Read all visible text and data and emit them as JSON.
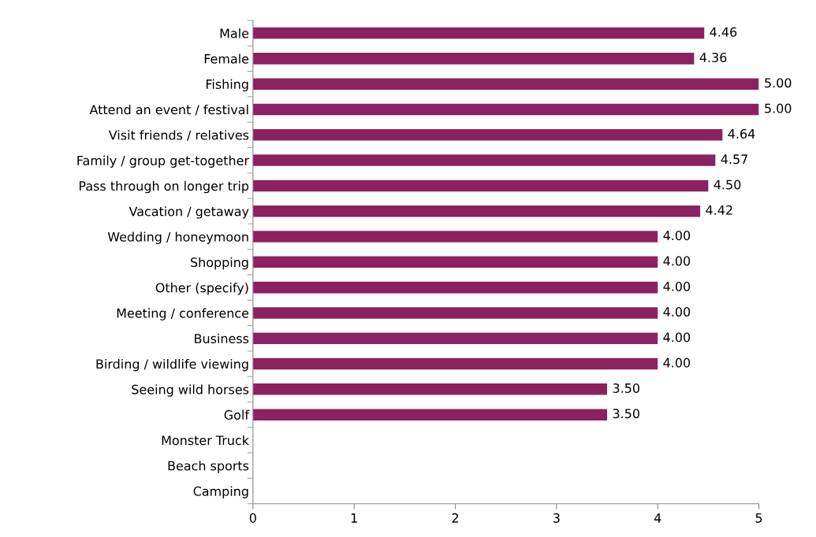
{
  "chart_data": {
    "type": "bar",
    "orientation": "horizontal",
    "categories": [
      "Male",
      "Female",
      "Fishing",
      "Attend an event / festival",
      "Visit friends / relatives",
      "Family / group get-together",
      "Pass through on longer trip",
      "Vacation / getaway",
      "Wedding / honeymoon",
      "Shopping",
      "Other (specify)",
      "Meeting / conference",
      "Business",
      "Birding / wildlife viewing",
      "Seeing wild horses",
      "Golf",
      "Monster Truck",
      "Beach sports",
      "Camping"
    ],
    "values": [
      4.46,
      4.36,
      5.0,
      5.0,
      4.64,
      4.57,
      4.5,
      4.42,
      4.0,
      4.0,
      4.0,
      4.0,
      4.0,
      4.0,
      3.5,
      3.5,
      null,
      null,
      null
    ],
    "value_labels": [
      "4.46",
      "4.36",
      "5.00",
      "5.00",
      "4.64",
      "4.57",
      "4.50",
      "4.42",
      "4.00",
      "4.00",
      "4.00",
      "4.00",
      "4.00",
      "4.00",
      "3.50",
      "3.50",
      null,
      null,
      null
    ],
    "color": "#8b2161",
    "xlim": [
      0,
      5
    ],
    "xticks": [
      0,
      1,
      2,
      3,
      4,
      5
    ],
    "grid": false
  }
}
